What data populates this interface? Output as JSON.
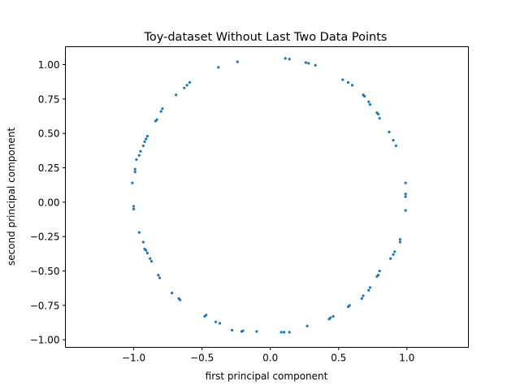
{
  "chart_data": {
    "type": "scatter",
    "title": "Toy-dataset Without Last Two Data Points",
    "xlabel": "first principal component",
    "ylabel": "second principal component",
    "xlim": [
      -1.5,
      1.45
    ],
    "ylim": [
      -1.055,
      1.13
    ],
    "xticks": [
      -1.0,
      -0.5,
      0.0,
      0.5,
      1.0
    ],
    "xtick_labels": [
      "−1.0",
      "−0.5",
      "0.0",
      "0.5",
      "1.0"
    ],
    "yticks": [
      1.0,
      0.75,
      0.5,
      0.25,
      0.0,
      -0.25,
      -0.5,
      -0.75,
      -1.0
    ],
    "ytick_labels": [
      "1.00",
      "0.75",
      "0.50",
      "0.25",
      "0.00",
      "−0.25",
      "−0.50",
      "−0.75",
      "−1.00"
    ],
    "grid": false,
    "marker_color": "#1f77b4",
    "points": [
      [
        0.11,
        1.045
      ],
      [
        0.14,
        1.04
      ],
      [
        0.26,
        1.015
      ],
      [
        0.28,
        1.01
      ],
      [
        0.33,
        0.995
      ],
      [
        -0.24,
        1.02
      ],
      [
        -0.38,
        0.98
      ],
      [
        0.53,
        0.89
      ],
      [
        0.57,
        0.87
      ],
      [
        0.6,
        0.85
      ],
      [
        0.68,
        0.78
      ],
      [
        0.69,
        0.77
      ],
      [
        0.72,
        0.73
      ],
      [
        0.73,
        0.71
      ],
      [
        0.78,
        0.65
      ],
      [
        0.79,
        0.64
      ],
      [
        0.8,
        0.61
      ],
      [
        0.87,
        0.51
      ],
      [
        0.9,
        0.45
      ],
      [
        0.92,
        0.41
      ],
      [
        0.99,
        0.14
      ],
      [
        0.99,
        0.06
      ],
      [
        0.99,
        0.04
      ],
      [
        0.99,
        -0.06
      ],
      [
        0.95,
        -0.27
      ],
      [
        0.95,
        -0.29
      ],
      [
        0.91,
        -0.36
      ],
      [
        0.9,
        -0.38
      ],
      [
        0.88,
        -0.41
      ],
      [
        0.8,
        -0.5
      ],
      [
        0.79,
        -0.53
      ],
      [
        0.78,
        -0.54
      ],
      [
        0.73,
        -0.62
      ],
      [
        0.72,
        -0.64
      ],
      [
        0.68,
        -0.68
      ],
      [
        0.67,
        -0.7
      ],
      [
        0.58,
        -0.75
      ],
      [
        0.57,
        -0.76
      ],
      [
        0.46,
        -0.83
      ],
      [
        0.44,
        -0.84
      ],
      [
        0.43,
        -0.85
      ],
      [
        0.27,
        -0.9
      ],
      [
        0.14,
        -0.945
      ],
      [
        0.1,
        -0.945
      ],
      [
        0.08,
        -0.945
      ],
      [
        -0.1,
        -0.94
      ],
      [
        -0.2,
        -0.935
      ],
      [
        -0.21,
        -0.94
      ],
      [
        -0.28,
        -0.93
      ],
      [
        -0.37,
        -0.88
      ],
      [
        -0.4,
        -0.87
      ],
      [
        -0.47,
        -0.82
      ],
      [
        -0.48,
        -0.83
      ],
      [
        -0.66,
        -0.71
      ],
      [
        -0.67,
        -0.7
      ],
      [
        -0.72,
        -0.66
      ],
      [
        -0.81,
        -0.55
      ],
      [
        -0.82,
        -0.53
      ],
      [
        -0.87,
        -0.43
      ],
      [
        -0.88,
        -0.41
      ],
      [
        -0.9,
        -0.37
      ],
      [
        -0.91,
        -0.35
      ],
      [
        -0.92,
        -0.34
      ],
      [
        -0.93,
        -0.29
      ],
      [
        -0.96,
        -0.22
      ],
      [
        -1.0,
        -0.03
      ],
      [
        -1.0,
        -0.05
      ],
      [
        -1.01,
        0.14
      ],
      [
        -0.99,
        0.22
      ],
      [
        -0.99,
        0.24
      ],
      [
        -0.98,
        0.31
      ],
      [
        -0.96,
        0.34
      ],
      [
        -0.95,
        0.37
      ],
      [
        -0.93,
        0.41
      ],
      [
        -0.92,
        0.44
      ],
      [
        -0.91,
        0.46
      ],
      [
        -0.9,
        0.48
      ],
      [
        -0.84,
        0.59
      ],
      [
        -0.83,
        0.6
      ],
      [
        -0.8,
        0.66
      ],
      [
        -0.79,
        0.68
      ],
      [
        -0.69,
        0.78
      ],
      [
        -0.63,
        0.83
      ],
      [
        -0.61,
        0.85
      ],
      [
        -0.59,
        0.87
      ]
    ]
  }
}
